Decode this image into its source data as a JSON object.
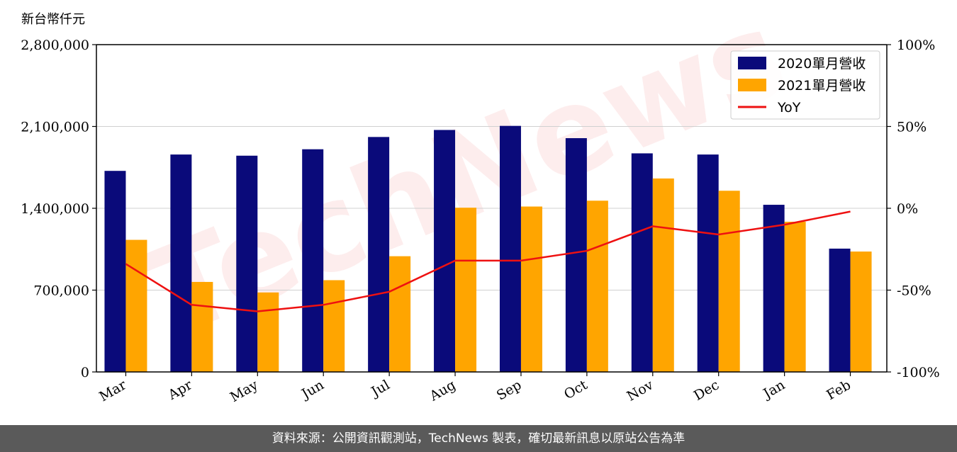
{
  "footer": {
    "text": "資料來源：公開資訊觀測站，TechNews 製表，確切最新訊息以原站公告為準"
  },
  "watermark": {
    "text": "TechNews"
  },
  "colors": {
    "series_2020": "#0a0a7a",
    "series_2021": "#ffa500",
    "yoy": "#ee1111"
  },
  "chart_data": {
    "type": "bar",
    "ylabel": "新台幣仟元",
    "categories": [
      "Mar",
      "Apr",
      "May",
      "Jun",
      "Jul",
      "Aug",
      "Sep",
      "Oct",
      "Nov",
      "Dec",
      "Jan",
      "Feb"
    ],
    "ylim": [
      0,
      2800000
    ],
    "y_ticks": [
      0,
      700000,
      1400000,
      2100000,
      2800000
    ],
    "y_tick_labels": [
      "0",
      "700,000",
      "1,400,000",
      "2,100,000",
      "2,800,000"
    ],
    "y2lim": [
      -100,
      100
    ],
    "y2_ticks": [
      -100,
      -50,
      0,
      50,
      100
    ],
    "y2_tick_labels": [
      "-100%",
      "-50%",
      "0%",
      "50%",
      "100%"
    ],
    "grid": true,
    "legend_position": "top-right",
    "series": [
      {
        "name": "2020單月營收",
        "type": "bar",
        "values": [
          1720000,
          1860000,
          1850000,
          1905000,
          2010000,
          2070000,
          2105000,
          2000000,
          1870000,
          1860000,
          1430000,
          1055000
        ]
      },
      {
        "name": "2021單月營收",
        "type": "bar",
        "values": [
          1130000,
          770000,
          680000,
          785000,
          990000,
          1405000,
          1415000,
          1465000,
          1655000,
          1550000,
          1285000,
          1030000
        ]
      },
      {
        "name": "YoY",
        "type": "line",
        "axis": "right",
        "values": [
          -34,
          -59,
          -63,
          -59,
          -51,
          -32,
          -32,
          -26,
          -11,
          -16,
          -10,
          -2
        ]
      }
    ]
  }
}
